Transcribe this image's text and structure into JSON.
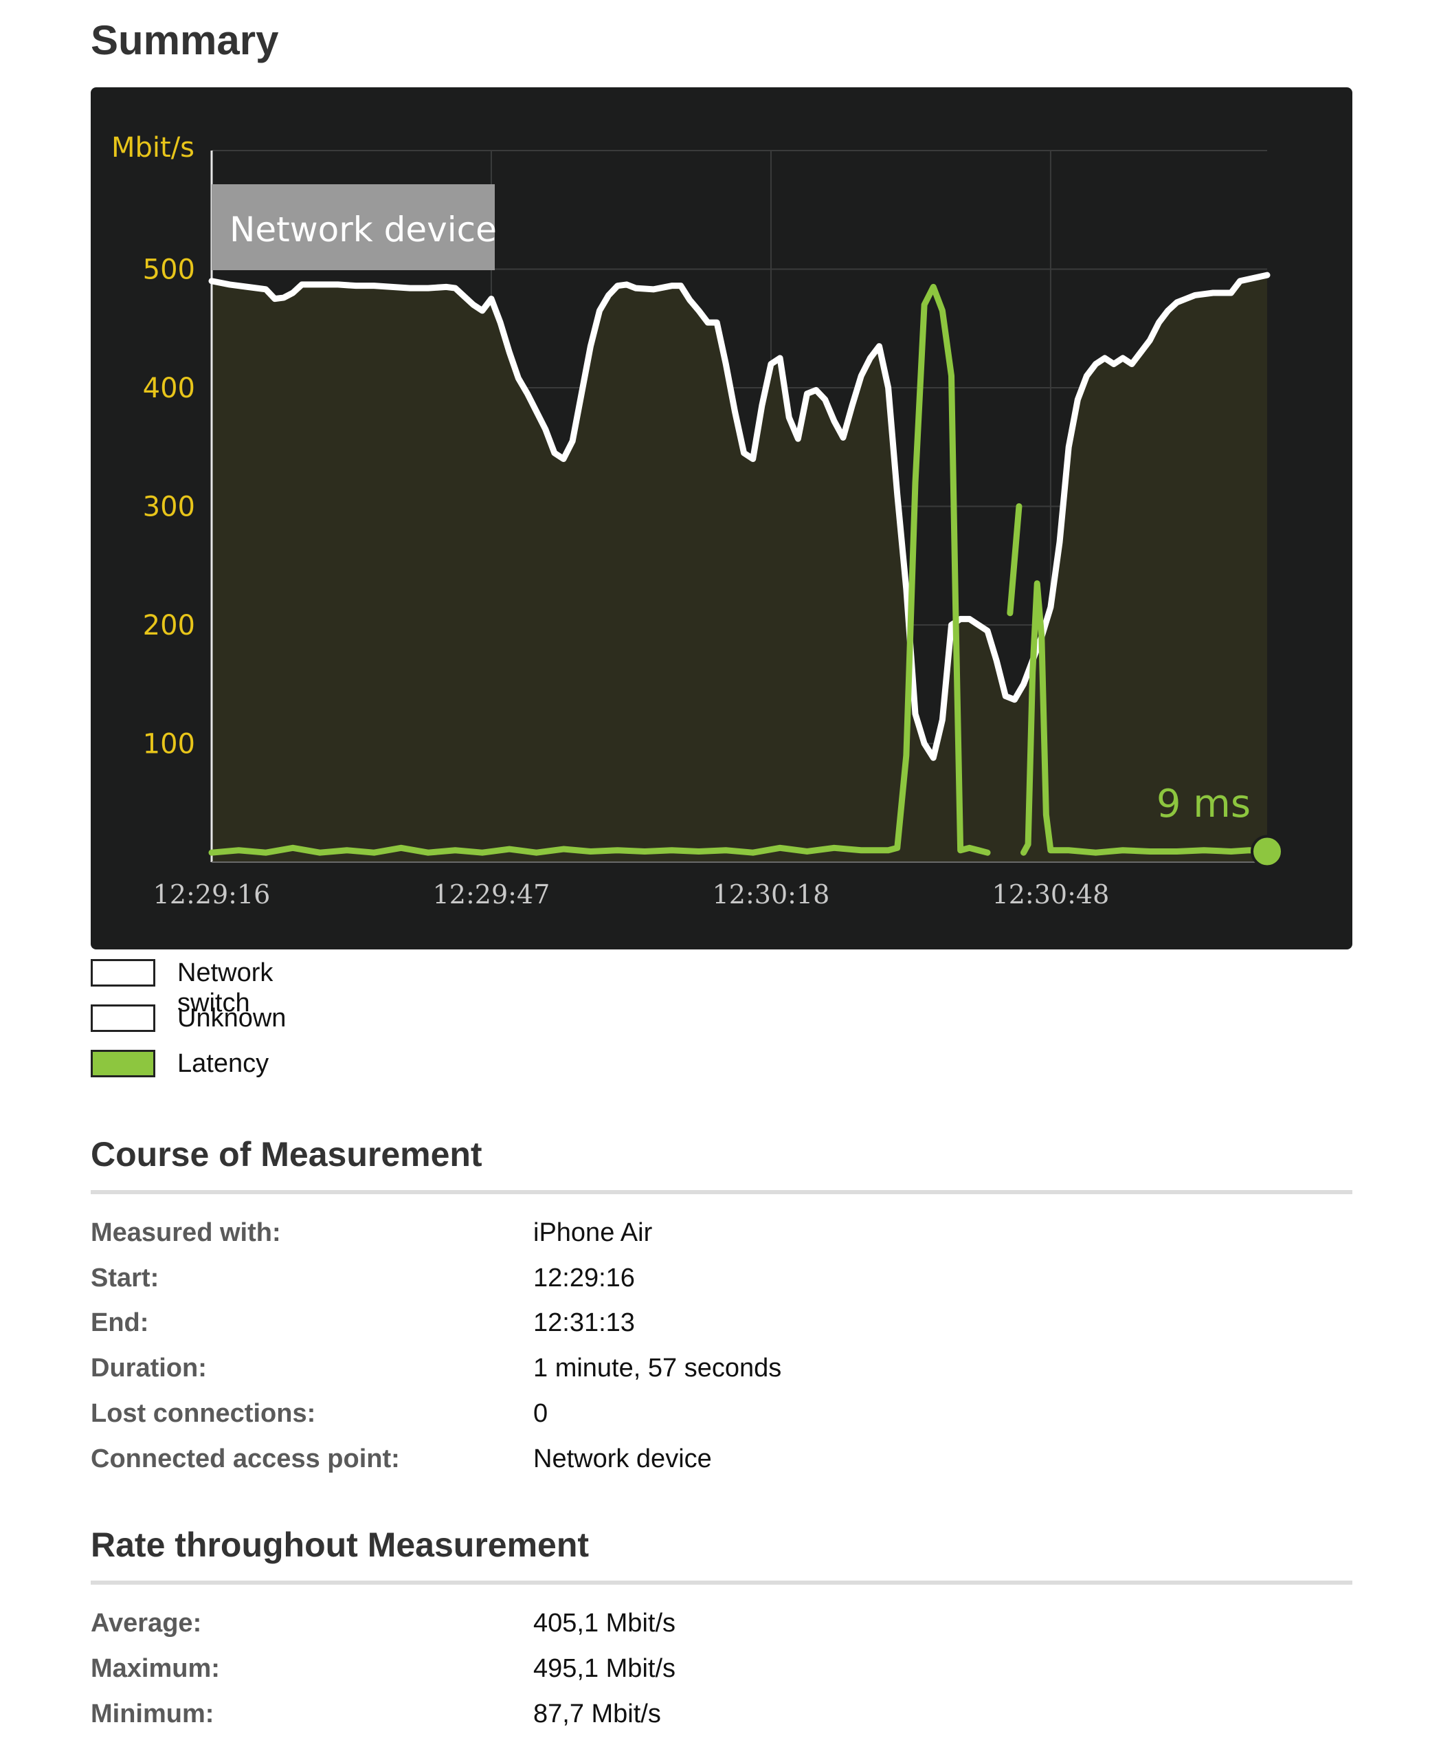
{
  "page": {
    "title": "Summary"
  },
  "chart_data": {
    "type": "line",
    "ylabel": "Mbit/s",
    "yticks": [
      100,
      200,
      300,
      400,
      500
    ],
    "ylim": [
      0,
      600
    ],
    "xticks": [
      "12:29:16",
      "12:29:47",
      "12:30:18",
      "12:30:48"
    ],
    "xlim_seconds_from_start": [
      0,
      117
    ],
    "grid": true,
    "annotation_box": "Network device",
    "latency_readout": "9 ms",
    "colors": {
      "rate": "#ffffff",
      "latency": "#8dc63f",
      "area": "#2d2d1e",
      "axis_text": "#e8c51a",
      "tick_text": "#c8c8c8",
      "box": "#9a9a9a"
    },
    "series": [
      {
        "name": "Network switch",
        "points": [
          [
            0,
            490
          ],
          [
            2,
            487
          ],
          [
            4,
            485
          ],
          [
            6,
            483
          ],
          [
            7,
            475
          ],
          [
            8,
            476
          ],
          [
            9,
            480
          ],
          [
            10,
            487
          ],
          [
            12,
            487
          ],
          [
            14,
            487
          ],
          [
            16,
            486
          ],
          [
            18,
            486
          ],
          [
            20,
            485
          ],
          [
            22,
            484
          ],
          [
            24,
            484
          ],
          [
            26,
            485
          ],
          [
            27,
            484
          ],
          [
            28,
            477
          ],
          [
            29,
            470
          ],
          [
            30,
            465
          ],
          [
            31,
            475
          ],
          [
            32,
            455
          ],
          [
            33,
            430
          ],
          [
            34,
            408
          ],
          [
            35,
            395
          ],
          [
            36,
            380
          ],
          [
            37,
            365
          ],
          [
            38,
            345
          ],
          [
            39,
            340
          ],
          [
            40,
            355
          ],
          [
            41,
            395
          ],
          [
            42,
            435
          ],
          [
            43,
            465
          ],
          [
            44,
            478
          ],
          [
            45,
            486
          ],
          [
            46,
            487
          ],
          [
            47,
            484
          ],
          [
            49,
            483
          ],
          [
            51,
            486
          ],
          [
            52,
            486
          ],
          [
            53,
            474
          ],
          [
            54,
            465
          ],
          [
            55,
            455
          ],
          [
            56,
            455
          ],
          [
            57,
            420
          ],
          [
            58,
            380
          ],
          [
            59,
            345
          ],
          [
            60,
            340
          ],
          [
            61,
            385
          ],
          [
            62,
            420
          ],
          [
            63,
            425
          ],
          [
            64,
            375
          ],
          [
            65,
            357
          ],
          [
            66,
            395
          ],
          [
            67,
            398
          ],
          [
            68,
            390
          ],
          [
            69,
            372
          ],
          [
            70,
            358
          ],
          [
            71,
            385
          ],
          [
            72,
            410
          ],
          [
            73,
            425
          ],
          [
            74,
            435
          ],
          [
            75,
            400
          ],
          [
            76,
            310
          ],
          [
            77,
            230
          ],
          [
            78,
            125
          ],
          [
            79,
            100
          ],
          [
            80,
            88
          ],
          [
            81,
            120
          ],
          [
            82,
            200
          ],
          [
            83,
            205
          ],
          [
            84,
            205
          ],
          [
            85,
            200
          ],
          [
            86,
            195
          ],
          [
            87,
            170
          ],
          [
            88,
            140
          ],
          [
            89,
            137
          ],
          [
            90,
            150
          ],
          [
            91,
            170
          ],
          [
            92,
            190
          ],
          [
            93,
            215
          ],
          [
            94,
            270
          ],
          [
            95,
            350
          ],
          [
            96,
            390
          ],
          [
            97,
            410
          ],
          [
            98,
            420
          ],
          [
            99,
            425
          ],
          [
            100,
            420
          ],
          [
            101,
            425
          ],
          [
            102,
            420
          ],
          [
            103,
            430
          ],
          [
            104,
            440
          ],
          [
            105,
            455
          ],
          [
            106,
            465
          ],
          [
            107,
            472
          ],
          [
            108,
            475
          ],
          [
            109,
            478
          ],
          [
            111,
            480
          ],
          [
            113,
            480
          ],
          [
            114,
            490
          ],
          [
            117,
            495
          ]
        ]
      },
      {
        "name": "Unknown",
        "points": []
      },
      {
        "name": "Latency",
        "segments": [
          [
            [
              0,
              8
            ],
            [
              3,
              10
            ],
            [
              6,
              8
            ],
            [
              9,
              12
            ],
            [
              12,
              8
            ],
            [
              15,
              10
            ],
            [
              18,
              8
            ],
            [
              21,
              12
            ],
            [
              24,
              8
            ],
            [
              27,
              10
            ],
            [
              30,
              8
            ],
            [
              33,
              11
            ],
            [
              36,
              8
            ],
            [
              39,
              11
            ],
            [
              42,
              9
            ],
            [
              45,
              10
            ],
            [
              48,
              9
            ],
            [
              51,
              10
            ],
            [
              54,
              9
            ],
            [
              57,
              10
            ],
            [
              60,
              8
            ],
            [
              63,
              12
            ],
            [
              66,
              9
            ],
            [
              69,
              12
            ],
            [
              72,
              10
            ],
            [
              75,
              10
            ],
            [
              76,
              12
            ],
            [
              77,
              90
            ],
            [
              78,
              320
            ],
            [
              79,
              470
            ],
            [
              80,
              485
            ],
            [
              81,
              465
            ],
            [
              82,
              410
            ],
            [
              82.5,
              200
            ],
            [
              83,
              10
            ],
            [
              84,
              12
            ],
            [
              85,
              10
            ],
            [
              86,
              8
            ]
          ],
          [
            [
              88.5,
              210
            ],
            [
              89.5,
              300
            ]
          ],
          [
            [
              90,
              8
            ],
            [
              90.5,
              15
            ],
            [
              91,
              160
            ],
            [
              91.5,
              235
            ],
            [
              92,
              190
            ],
            [
              92.5,
              40
            ],
            [
              93,
              10
            ],
            [
              95,
              10
            ],
            [
              98,
              8
            ],
            [
              101,
              10
            ],
            [
              104,
              9
            ],
            [
              107,
              9
            ],
            [
              110,
              10
            ],
            [
              113,
              9
            ],
            [
              115,
              10
            ],
            [
              117,
              9
            ]
          ]
        ]
      }
    ]
  },
  "legend": [
    {
      "label": "Network switch",
      "color": "#ffffff"
    },
    {
      "label": "Unknown",
      "color": "#ffffff"
    },
    {
      "label": "Latency",
      "color": "#8dc63f"
    }
  ],
  "course": {
    "title": "Course of Measurement",
    "rows": [
      {
        "label": "Measured with:",
        "value": "iPhone Air"
      },
      {
        "label": "Start:",
        "value": "12:29:16"
      },
      {
        "label": "End:",
        "value": "12:31:13"
      },
      {
        "label": "Duration:",
        "value": "1 minute, 57 seconds"
      },
      {
        "label": "Lost connections:",
        "value": "0"
      },
      {
        "label": "Connected access point:",
        "value": "Network device"
      }
    ]
  },
  "rate": {
    "title": "Rate throughout Measurement",
    "rows": [
      {
        "label": "Average:",
        "value": "405,1 Mbit/s"
      },
      {
        "label": "Maximum:",
        "value": "495,1 Mbit/s"
      },
      {
        "label": "Minimum:",
        "value": "87,7 Mbit/s"
      }
    ]
  }
}
